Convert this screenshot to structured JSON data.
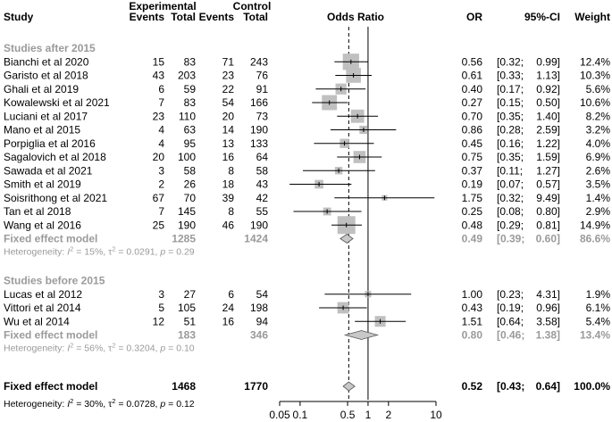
{
  "chart_data": {
    "type": "forest",
    "headers": {
      "study": "Study",
      "experimental": "Experimental",
      "control": "Control",
      "events": "Events",
      "total": "Total",
      "odds_ratio": "Odds Ratio",
      "or": "OR",
      "ci": "95%-CI",
      "weight": "Weight"
    },
    "axis": {
      "scale": "log",
      "ticks": [
        "0.05",
        "0.1",
        "0.5",
        "1",
        "2",
        "10"
      ],
      "tick_values": [
        0.05,
        0.1,
        0.5,
        1,
        2,
        10
      ],
      "xlim": [
        0.05,
        10
      ],
      "reference_line": 1,
      "dashed_line": 0.52
    },
    "groups": [
      {
        "name": "Studies after 2015",
        "studies": [
          {
            "study": "Bianchi et al 2020",
            "e_events": "15",
            "e_total": "83",
            "c_events": "71",
            "c_total": "243",
            "or": "0.56",
            "lo": "[0.32;",
            "hi": "0.99]",
            "weight": "12.4%"
          },
          {
            "study": "Garisto et al 2018",
            "e_events": "43",
            "e_total": "203",
            "c_events": "23",
            "c_total": "76",
            "or": "0.61",
            "lo": "[0.33;",
            "hi": "1.13]",
            "weight": "10.3%"
          },
          {
            "study": "Ghali et al 2019",
            "e_events": "6",
            "e_total": "59",
            "c_events": "22",
            "c_total": "91",
            "or": "0.40",
            "lo": "[0.17;",
            "hi": "0.92]",
            "weight": "5.6%"
          },
          {
            "study": "Kowalewski et al 2021",
            "e_events": "7",
            "e_total": "83",
            "c_events": "54",
            "c_total": "166",
            "or": "0.27",
            "lo": "[0.15;",
            "hi": "0.50]",
            "weight": "10.6%"
          },
          {
            "study": "Luciani et al 2017",
            "e_events": "23",
            "e_total": "110",
            "c_events": "20",
            "c_total": "73",
            "or": "0.70",
            "lo": "[0.35;",
            "hi": "1.40]",
            "weight": "8.2%"
          },
          {
            "study": "Mano et al 2015",
            "e_events": "4",
            "e_total": "63",
            "c_events": "14",
            "c_total": "190",
            "or": "0.86",
            "lo": "[0.28;",
            "hi": "2.59]",
            "weight": "3.2%"
          },
          {
            "study": "Porpiglia et al 2016",
            "e_events": "4",
            "e_total": "95",
            "c_events": "13",
            "c_total": "133",
            "or": "0.45",
            "lo": "[0.16;",
            "hi": "1.22]",
            "weight": "4.0%"
          },
          {
            "study": "Sagalovich et al 2018",
            "e_events": "20",
            "e_total": "100",
            "c_events": "16",
            "c_total": "64",
            "or": "0.75",
            "lo": "[0.35;",
            "hi": "1.59]",
            "weight": "6.9%"
          },
          {
            "study": "Sawada et al 2021",
            "e_events": "3",
            "e_total": "58",
            "c_events": "8",
            "c_total": "58",
            "or": "0.37",
            "lo": "[0.11;",
            "hi": "1.27]",
            "weight": "2.6%"
          },
          {
            "study": "Smith et al 2019",
            "e_events": "2",
            "e_total": "26",
            "c_events": "18",
            "c_total": "43",
            "or": "0.19",
            "lo": "[0.07;",
            "hi": "0.57]",
            "weight": "3.5%"
          },
          {
            "study": "Soisrithong et al 2021",
            "e_events": "67",
            "e_total": "70",
            "c_events": "39",
            "c_total": "42",
            "or": "1.75",
            "lo": "[0.32;",
            "hi": "9.49]",
            "weight": "1.4%"
          },
          {
            "study": "Tan et al 2018",
            "e_events": "7",
            "e_total": "145",
            "c_events": "8",
            "c_total": "55",
            "or": "0.25",
            "lo": "[0.08;",
            "hi": "0.80]",
            "weight": "2.9%"
          },
          {
            "study": "Wang et al 2016",
            "e_events": "25",
            "e_total": "190",
            "c_events": "46",
            "c_total": "190",
            "or": "0.48",
            "lo": "[0.29;",
            "hi": "0.81]",
            "weight": "14.9%"
          }
        ],
        "fixed": {
          "label": "Fixed effect model",
          "e_total": "1285",
          "c_total": "1424",
          "or": "0.49",
          "lo": "[0.39;",
          "hi": "0.60]",
          "weight": "86.6%"
        },
        "heterogeneity": {
          "i2": "15%",
          "tau2": "0.0291",
          "p": "0.29"
        }
      },
      {
        "name": "Studies before 2015",
        "studies": [
          {
            "study": "Lucas et al 2012",
            "e_events": "3",
            "e_total": "27",
            "c_events": "6",
            "c_total": "54",
            "or": "1.00",
            "lo": "[0.23;",
            "hi": "4.31]",
            "weight": "1.9%"
          },
          {
            "study": "Vittori et al 2014",
            "e_events": "5",
            "e_total": "105",
            "c_events": "24",
            "c_total": "198",
            "or": "0.43",
            "lo": "[0.19;",
            "hi": "0.96]",
            "weight": "6.1%"
          },
          {
            "study": "Wu et al 2014",
            "e_events": "12",
            "e_total": "51",
            "c_events": "16",
            "c_total": "94",
            "or": "1.51",
            "lo": "[0.64;",
            "hi": "3.58]",
            "weight": "5.4%"
          }
        ],
        "fixed": {
          "label": "Fixed effect model",
          "e_total": "183",
          "c_total": "346",
          "or": "0.80",
          "lo": "[0.46;",
          "hi": "1.38]",
          "weight": "13.4%"
        },
        "heterogeneity": {
          "i2": "56%",
          "tau2": "0.3204",
          "p": "0.10"
        }
      }
    ],
    "overall": {
      "label": "Fixed effect model",
      "e_total": "1468",
      "c_total": "1770",
      "or": "0.52",
      "lo": "[0.43;",
      "hi": "0.64]",
      "weight": "100.0%",
      "heterogeneity": {
        "i2": "30%",
        "tau2": "0.0728",
        "p": "0.12"
      }
    },
    "colors": {
      "text": "#000000",
      "subgroup": "#9a9a9a",
      "square": "#c0c0c0",
      "diamond": "#c8c8c8"
    }
  }
}
